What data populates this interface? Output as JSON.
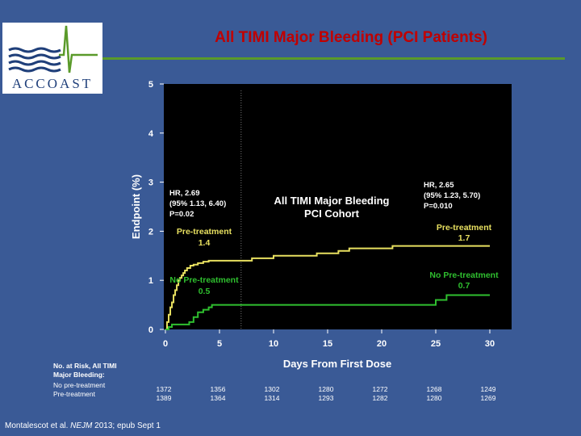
{
  "slide": {
    "title": "All TIMI Major Bleeding (PCI Patients)",
    "logo_text": "ACCOAST",
    "citation_prefix": "Montalescot et al. ",
    "citation_journal": "NEJM",
    "citation_suffix": " 2013; epub Sept 1"
  },
  "chart_data": {
    "type": "line",
    "xlabel": "Days From First Dose",
    "ylabel": "Endpoint (%)",
    "xlim": [
      0,
      30
    ],
    "ylim": [
      0,
      5
    ],
    "xticks": [
      0,
      5,
      10,
      15,
      20,
      25,
      30
    ],
    "yticks": [
      0,
      1,
      2,
      3,
      4,
      5
    ],
    "reference_line_x": 7,
    "colors": {
      "pre_treatment": "#e8e060",
      "no_pre_treatment": "#2fbf2f",
      "background": "#000000"
    },
    "annotations": {
      "center_line1": "All TIMI Major Bleeding",
      "center_line2": "PCI Cohort",
      "left_hr1": "HR, 2.69",
      "left_hr2": "(95% 1.13, 6.40)",
      "left_hr3": "P=0.02",
      "right_hr1": "HR, 2.65",
      "right_hr2": "(95% 1.23, 5.70)",
      "right_hr3": "P=0.010",
      "pre_left_name": "Pre-treatment",
      "pre_left_value": "1.4",
      "nopre_left_name": "No Pre-treatment",
      "nopre_left_value": "0.5",
      "pre_right_name": "Pre-treatment",
      "pre_right_value": "1.7",
      "nopre_right_name": "No Pre-treatment",
      "nopre_right_value": "0.7"
    },
    "series": [
      {
        "name": "Pre-treatment",
        "x": [
          0,
          0.15,
          0.3,
          0.45,
          0.6,
          0.75,
          0.9,
          1.05,
          1.2,
          1.35,
          1.5,
          1.65,
          1.8,
          2.0,
          2.3,
          2.6,
          3.0,
          3.5,
          4.0,
          4.5,
          6.0,
          8.0,
          10.0,
          12.0,
          14.0,
          16.0,
          17.0,
          19.0,
          20.0,
          21.0,
          25.0,
          30.0
        ],
        "y": [
          0,
          0.15,
          0.3,
          0.45,
          0.55,
          0.7,
          0.8,
          0.9,
          1.0,
          1.05,
          1.1,
          1.15,
          1.2,
          1.25,
          1.3,
          1.32,
          1.35,
          1.38,
          1.4,
          1.4,
          1.4,
          1.45,
          1.5,
          1.5,
          1.55,
          1.6,
          1.65,
          1.65,
          1.65,
          1.7,
          1.7,
          1.7
        ]
      },
      {
        "name": "No Pre-treatment",
        "x": [
          0,
          0.3,
          0.6,
          1.5,
          2.2,
          2.6,
          3.0,
          3.5,
          4.0,
          4.3,
          5.0,
          7.0,
          24.8,
          25.0,
          26.0,
          30.0
        ],
        "y": [
          0,
          0.05,
          0.1,
          0.1,
          0.15,
          0.25,
          0.35,
          0.4,
          0.45,
          0.5,
          0.5,
          0.5,
          0.5,
          0.6,
          0.7,
          0.7
        ]
      }
    ],
    "risk_table": {
      "header_line1": "No. at Risk,  All TIMI",
      "header_line2": "Major Bleeding:",
      "row1_label": "No pre-treatment",
      "row2_label": "Pre-treatment",
      "no_pre": [
        "1372",
        "1356",
        "1302",
        "1280",
        "1272",
        "1268",
        "1249"
      ],
      "pre": [
        "1389",
        "1364",
        "1314",
        "1293",
        "1282",
        "1280",
        "1269"
      ]
    }
  }
}
